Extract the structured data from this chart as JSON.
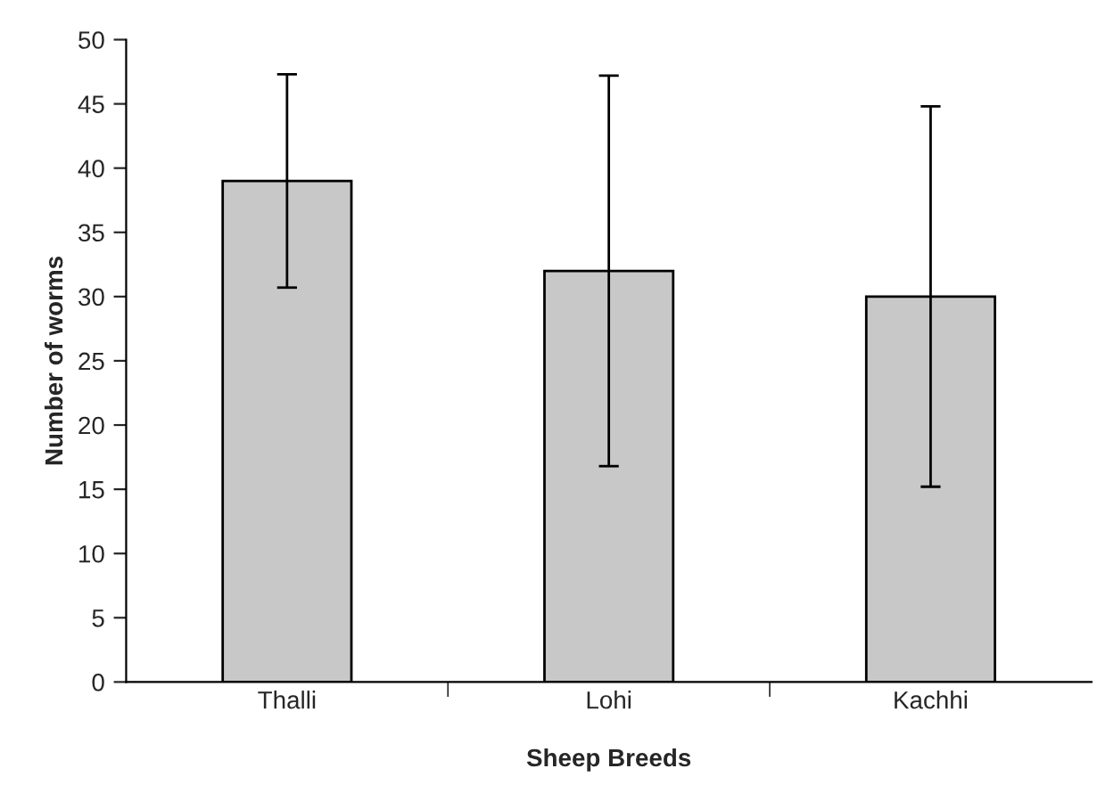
{
  "chart_data": {
    "type": "bar",
    "xlabel": "Sheep Breeds",
    "ylabel": "Number of worms",
    "categories": [
      "Thalli",
      "Lohi",
      "Kachhi"
    ],
    "values": [
      39,
      32,
      30
    ],
    "errors": [
      8.3,
      15.2,
      14.8
    ],
    "color": "#c8c8c8",
    "ylim": [
      0,
      50
    ],
    "yticks": [
      0,
      5,
      10,
      15,
      20,
      25,
      30,
      35,
      40,
      45,
      50
    ],
    "grid": false,
    "legend": false
  }
}
